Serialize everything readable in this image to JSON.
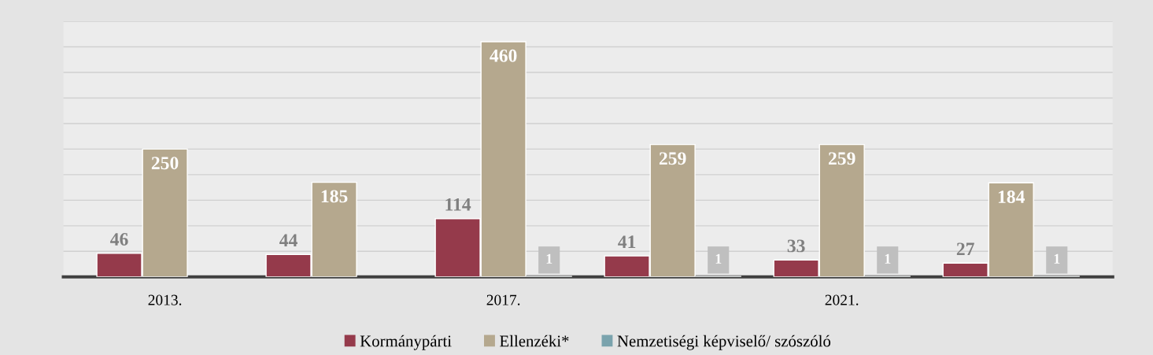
{
  "chart_data": {
    "type": "bar",
    "categories": [
      "2013.",
      null,
      "2017.",
      null,
      "2021.",
      null
    ],
    "series": [
      {
        "name": "Kormánypárti",
        "color": "#953a4b",
        "values": [
          46,
          44,
          114,
          41,
          33,
          27
        ]
      },
      {
        "name": "Ellenzéki*",
        "color": "#b5a88e",
        "values": [
          250,
          185,
          460,
          259,
          259,
          184
        ]
      },
      {
        "name": "Nemzetiségi képviselő/ szószóló",
        "color": "#7aa3ad",
        "values": [
          null,
          null,
          1,
          1,
          1,
          1
        ]
      }
    ],
    "ylim": [
      0,
      500
    ],
    "yticks": [
      {
        "value": 0,
        "label": null
      },
      {
        "value": 50,
        "label": null
      },
      {
        "value": 100,
        "label": null
      },
      {
        "value": 150,
        "label": null
      },
      {
        "value": 200,
        "label": null
      },
      {
        "value": 250,
        "label": null
      },
      {
        "value": 300,
        "label": null
      },
      {
        "value": 350,
        "label": null
      },
      {
        "value": 400,
        "label": null
      },
      {
        "value": 450,
        "label": null
      },
      {
        "value": 500,
        "label": null
      }
    ],
    "grid": "y",
    "legend": "bottom",
    "data_labels": true
  }
}
